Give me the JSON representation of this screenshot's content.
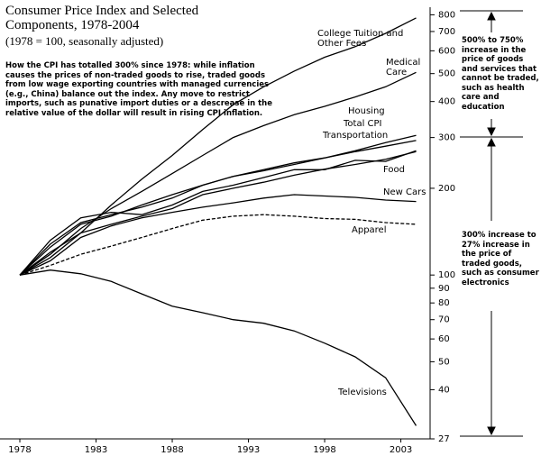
{
  "chart_data": {
    "type": "line",
    "title": "Consumer Price Index and Selected Components, 1978-2004",
    "subtitle": "(1978 = 100, seasonally adjusted)",
    "annotations": [
      "How the CPI has totalled 300% since 1978: while inflation causes the prices of non-traded goods to rise, traded goods from low wage exporting countries with managed currencies (e.g., China) balance out the index. Any move to restrict imports, such as punative import duties or a descrease in the relative value of the dollar will result in rising CPI inflation.",
      "500% to 750% increase in the price of goods and services that cannot be traded, such as health care and education",
      "300% increase to 27% increase in the price of traded goods, such as consumer electronics"
    ],
    "x": [
      1978,
      1980,
      1982,
      1984,
      1986,
      1988,
      1990,
      1992,
      1994,
      1996,
      1998,
      2000,
      2002,
      2004
    ],
    "xlim": [
      1978,
      2004.8
    ],
    "xticks": [
      1978,
      1983,
      1988,
      1993,
      1998,
      2003
    ],
    "ylim": [
      27,
      850
    ],
    "log_scale": true,
    "yticks": [
      800,
      700,
      600,
      500,
      400,
      300,
      200,
      100,
      90,
      80,
      70,
      60,
      50,
      40,
      27
    ],
    "series": [
      {
        "name": "College Tuition and Other Fees",
        "color": "#000000",
        "values": [
          100,
          115,
          140,
          175,
          215,
          260,
          320,
          390,
          450,
          510,
          570,
          620,
          690,
          780
        ]
      },
      {
        "name": "Medical Care",
        "color": "#000000",
        "values": [
          100,
          118,
          145,
          170,
          195,
          225,
          260,
          300,
          330,
          360,
          385,
          415,
          450,
          505
        ]
      },
      {
        "name": "Housing",
        "color": "#000000",
        "values": [
          100,
          125,
          150,
          160,
          175,
          190,
          205,
          220,
          230,
          242,
          255,
          270,
          288,
          305
        ]
      },
      {
        "name": "Total CPI",
        "color": "#000000",
        "values": [
          100,
          128,
          152,
          162,
          172,
          185,
          205,
          220,
          232,
          245,
          255,
          268,
          280,
          293
        ]
      },
      {
        "name": "Transportation",
        "color": "#000000",
        "values": [
          100,
          132,
          158,
          165,
          162,
          175,
          195,
          205,
          218,
          232,
          232,
          250,
          248,
          270
        ]
      },
      {
        "name": "Food",
        "color": "#000000",
        "values": [
          100,
          120,
          140,
          150,
          160,
          170,
          190,
          200,
          210,
          222,
          233,
          242,
          252,
          268
        ]
      },
      {
        "name": "New Cars",
        "color": "#000000",
        "values": [
          100,
          112,
          135,
          148,
          158,
          165,
          172,
          178,
          185,
          190,
          188,
          186,
          182,
          180
        ]
      },
      {
        "name": "Apparel",
        "color": "#000000",
        "dash": true,
        "values": [
          100,
          108,
          118,
          126,
          135,
          145,
          155,
          160,
          162,
          160,
          157,
          156,
          152,
          150
        ]
      },
      {
        "name": "Televisions",
        "color": "#000000",
        "values": [
          100,
          104,
          101,
          95,
          86,
          78,
          74,
          70,
          68,
          64,
          58,
          52,
          44,
          30
        ]
      }
    ]
  }
}
